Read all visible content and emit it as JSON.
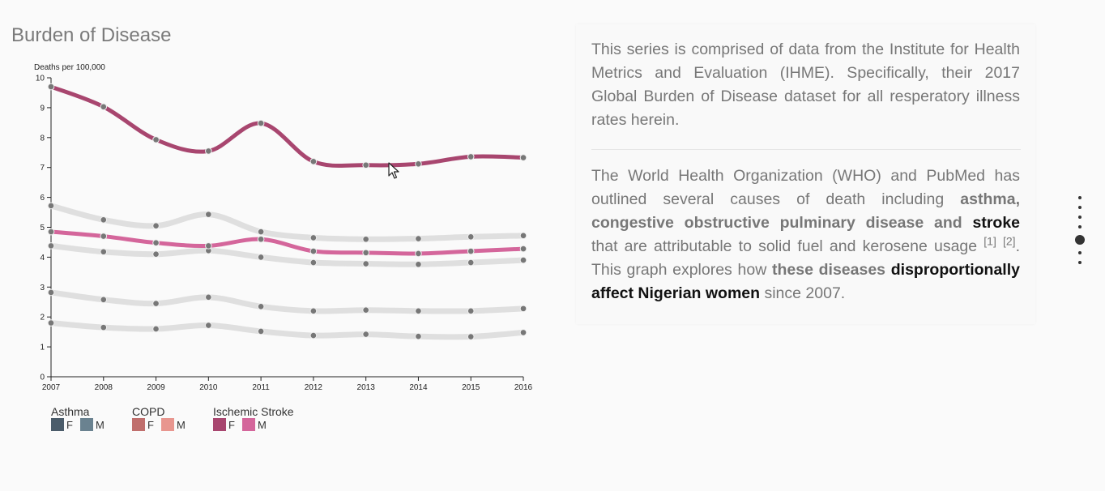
{
  "page": {
    "title": "Burden of Disease"
  },
  "chart_data": {
    "type": "line",
    "title": "Burden of Disease",
    "ylabel": "Deaths per 100,000",
    "xlabel": "",
    "x": [
      2007,
      2008,
      2009,
      2010,
      2011,
      2012,
      2013,
      2014,
      2015,
      2016
    ],
    "xlim": [
      2007,
      2016
    ],
    "ylim": [
      0,
      10
    ],
    "yticks": [
      0,
      1,
      2,
      3,
      4,
      5,
      6,
      7,
      8,
      9,
      10
    ],
    "grid": false,
    "legend_position": "bottom-left",
    "series": [
      {
        "name": "Asthma F",
        "color": "#dcdcdc",
        "highlight": false,
        "values": [
          1.8,
          1.65,
          1.6,
          1.72,
          1.52,
          1.38,
          1.42,
          1.35,
          1.34,
          1.48
        ]
      },
      {
        "name": "Asthma M",
        "color": "#dcdcdc",
        "highlight": false,
        "values": [
          2.82,
          2.58,
          2.45,
          2.66,
          2.35,
          2.2,
          2.23,
          2.2,
          2.2,
          2.28
        ]
      },
      {
        "name": "COPD F",
        "color": "#dcdcdc",
        "highlight": false,
        "values": [
          4.38,
          4.18,
          4.1,
          4.22,
          4.0,
          3.82,
          3.78,
          3.76,
          3.82,
          3.9
        ]
      },
      {
        "name": "COPD M",
        "color": "#dcdcdc",
        "highlight": false,
        "values": [
          5.72,
          5.25,
          5.05,
          5.43,
          4.85,
          4.65,
          4.6,
          4.62,
          4.68,
          4.72
        ]
      },
      {
        "name": "Ischemic Stroke M",
        "color": "#d4669b",
        "highlight": true,
        "values": [
          4.85,
          4.7,
          4.48,
          4.38,
          4.6,
          4.2,
          4.15,
          4.12,
          4.2,
          4.28
        ]
      },
      {
        "name": "Ischemic Stroke F",
        "color": "#a8466f",
        "highlight": true,
        "values": [
          9.7,
          9.03,
          7.93,
          7.55,
          8.48,
          7.2,
          7.08,
          7.12,
          7.36,
          7.33
        ]
      }
    ],
    "legend": [
      {
        "title": "Asthma",
        "items": [
          {
            "label": "F",
            "color": "#4b5c6a"
          },
          {
            "label": "M",
            "color": "#6a8290"
          }
        ]
      },
      {
        "title": "COPD",
        "items": [
          {
            "label": "F",
            "color": "#c06f6d"
          },
          {
            "label": "M",
            "color": "#e8968f"
          }
        ]
      },
      {
        "title": "Ischemic Stroke",
        "items": [
          {
            "label": "F",
            "color": "#a8466f"
          },
          {
            "label": "M",
            "color": "#d4669b"
          }
        ]
      }
    ]
  },
  "text": {
    "para1": "This series is comprised of data from the Institute for Health Metrics and Evaluation (IHME). Specifically, their 2017 Global Burden of Disease dataset for all resperatory illness rates herein.",
    "para2_a": "The World Health Organization (WHO) and PubMed has outlined several causes of death including ",
    "para2_b": "asthma, congestive obstructive pulminary disease and",
    "para2_c": "stroke",
    "para2_d": " that are attributable to solid fuel and kerosene usage ",
    "ref1": "[1]",
    "ref2": "[2]",
    "para2_e": ". This graph explores how ",
    "para2_f": "these diseases",
    "para2_g": "disproportionally affect Nigerian women",
    "para2_h": " since 2007."
  },
  "nav": {
    "dot_count": 7,
    "active_index": 4
  }
}
